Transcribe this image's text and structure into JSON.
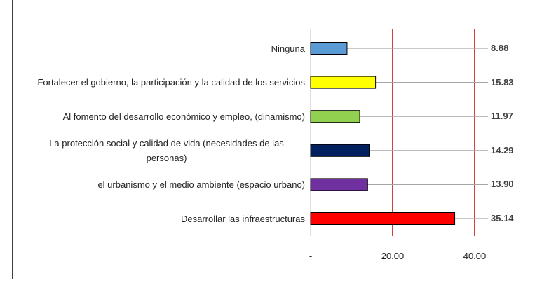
{
  "chart_data": {
    "type": "barh",
    "categories": [
      "Ninguna",
      "Fortalecer el gobierno, la participación y la calidad de los servicios",
      "Al fomento del desarrollo económico y empleo, (dinamismo)",
      "La protección social y calidad de vida (necesidades de las personas)",
      "el urbanismo y el medio ambiente (espacio urbano)",
      "Desarrollar las infraestructuras"
    ],
    "values": [
      8.88,
      15.83,
      11.97,
      14.29,
      13.9,
      35.14
    ],
    "value_labels": [
      "8.88",
      "15.83",
      "11.97",
      "14.29",
      "13.90",
      "35.14"
    ],
    "colors": [
      "#5b9bd5",
      "#ffff00",
      "#92d050",
      "#002060",
      "#7030a0",
      "#ff0000"
    ],
    "xlim": [
      0,
      40
    ],
    "xticks": [
      {
        "value": 0,
        "label": "-"
      },
      {
        "value": 20,
        "label": "20.00"
      },
      {
        "value": 40,
        "label": "40.00"
      }
    ],
    "grid": true,
    "grid_color": "#c00000"
  }
}
